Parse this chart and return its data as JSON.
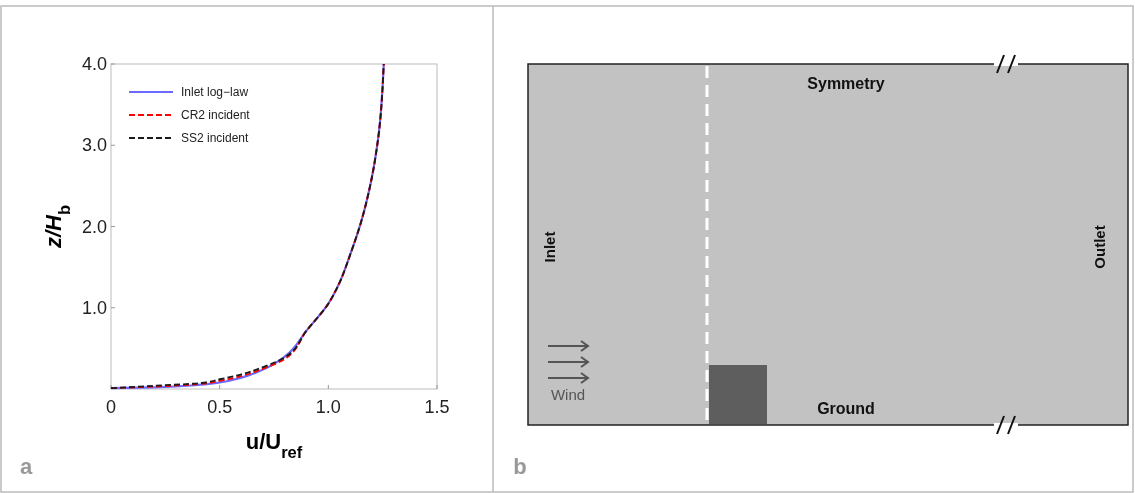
{
  "chart_data": [
    {
      "type": "line",
      "xlabel": "u/U$_{ref}$",
      "ylabel": "z/H$_{b}$",
      "xlim": [
        0,
        1.5
      ],
      "ylim": [
        0,
        4
      ],
      "xticks": [
        0,
        0.5,
        {
          "value": 1,
          "label": "1.0"
        },
        1.5
      ],
      "yticks": [
        {
          "value": 1,
          "label": "1.0"
        },
        {
          "value": 2,
          "label": "2.0"
        },
        {
          "value": 3,
          "label": "3.0"
        },
        {
          "value": 4,
          "label": "4.0"
        }
      ],
      "legend": "top left",
      "annotations": [
        "a"
      ],
      "series": [
        {
          "name": "Inlet log−law",
          "color": "#6b6bff",
          "line_style": "solid",
          "x": [
            0,
            0.2,
            0.4,
            0.5,
            0.6,
            0.7,
            0.8,
            0.9,
            1.0,
            1.05,
            1.1,
            1.15,
            1.2,
            1.23,
            1.255
          ],
          "values": [
            0.01,
            0.02,
            0.05,
            0.08,
            0.14,
            0.24,
            0.4,
            0.72,
            1.05,
            1.3,
            1.65,
            2.05,
            2.6,
            3.1,
            4.0
          ]
        },
        {
          "name": "CR2 incident",
          "color": "#ff0000",
          "line_style": "dashed",
          "x": [
            0,
            0.2,
            0.4,
            0.5,
            0.6,
            0.7,
            0.8,
            0.9,
            1.0,
            1.05,
            1.1,
            1.15,
            1.2,
            1.23,
            1.255
          ],
          "values": [
            0.01,
            0.03,
            0.06,
            0.1,
            0.16,
            0.25,
            0.37,
            0.72,
            1.05,
            1.3,
            1.65,
            2.05,
            2.6,
            3.1,
            4.0
          ]
        },
        {
          "name": "SS2 incident",
          "color": "#1a1a1a",
          "line_style": "dashed",
          "x": [
            0,
            0.2,
            0.4,
            0.5,
            0.6,
            0.7,
            0.8,
            0.9,
            1.0,
            1.05,
            1.1,
            1.15,
            1.2,
            1.23,
            1.255
          ],
          "values": [
            0.01,
            0.04,
            0.07,
            0.12,
            0.18,
            0.27,
            0.39,
            0.72,
            1.05,
            1.3,
            1.65,
            2.05,
            2.6,
            3.1,
            4.0
          ]
        }
      ]
    },
    {
      "type": "other",
      "annotations": [
        "Symmetry",
        "Inlet",
        "Outlet",
        "Ground",
        "Wind",
        "b"
      ]
    }
  ]
}
